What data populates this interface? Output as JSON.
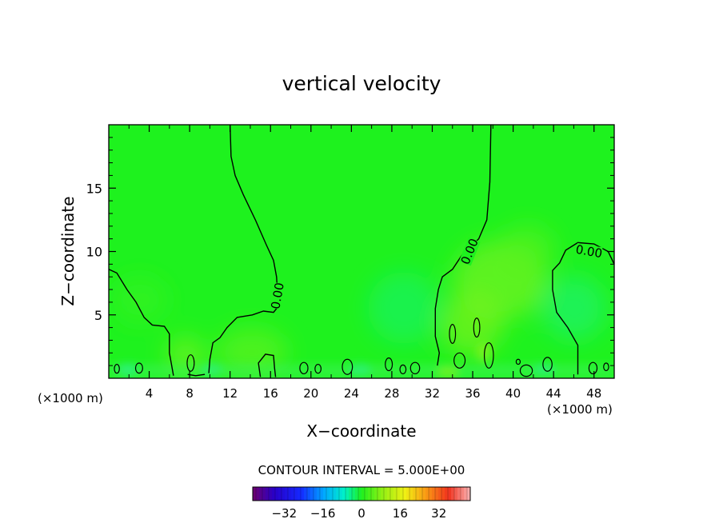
{
  "chart_data": {
    "type": "contour",
    "title": "vertical velocity",
    "xlabel": "X−coordinate",
    "ylabel": "Z−coordinate",
    "x_unit_left": "(×1000 m)",
    "x_unit_right": "(×1000 m)",
    "xlim": [
      0,
      50
    ],
    "ylim": [
      0,
      20
    ],
    "x_ticks": [
      4,
      8,
      12,
      16,
      20,
      24,
      28,
      32,
      36,
      40,
      44,
      48
    ],
    "x_tick_labels": [
      "4",
      "8",
      "12",
      "16",
      "20",
      "24",
      "28",
      "32",
      "36",
      "40",
      "44",
      "48"
    ],
    "y_ticks": [
      5,
      10,
      15
    ],
    "y_tick_labels": [
      "5",
      "10",
      "15"
    ],
    "contour_labels": [
      {
        "text": "0.00",
        "x": 16.7,
        "z": 6.5
      },
      {
        "text": "0.00",
        "x": 35.7,
        "z": 10.0
      },
      {
        "text": "0.00",
        "x": 47.5,
        "z": 10.0
      }
    ],
    "zero_contours": [
      [
        [
          12,
          20
        ],
        [
          12.1,
          17.5
        ],
        [
          12.5,
          16.0
        ],
        [
          13.3,
          14.5
        ],
        [
          14.5,
          12.5
        ],
        [
          15.6,
          10.5
        ],
        [
          16.3,
          9.3
        ],
        [
          16.6,
          8.0
        ],
        [
          16.7,
          6.6
        ],
        [
          16.6,
          5.5
        ],
        [
          16.3,
          5.2
        ],
        [
          15.3,
          5.3
        ],
        [
          14.2,
          5.0
        ],
        [
          12.7,
          4.8
        ],
        [
          11.7,
          4.0
        ],
        [
          11.0,
          3.2
        ],
        [
          10.3,
          2.8
        ],
        [
          10.0,
          1.5
        ],
        [
          9.9,
          0.4
        ]
      ],
      [
        [
          0,
          8.6
        ],
        [
          0.8,
          8.3
        ],
        [
          1.8,
          7.0
        ],
        [
          2.7,
          6.0
        ],
        [
          3.5,
          4.8
        ],
        [
          4.3,
          4.2
        ],
        [
          5.5,
          4.1
        ],
        [
          6.0,
          3.5
        ],
        [
          6.0,
          2.0
        ],
        [
          6.2,
          1.1
        ],
        [
          6.4,
          0.2
        ]
      ],
      [
        [
          37.8,
          20
        ],
        [
          37.7,
          15.5
        ],
        [
          37.4,
          12.5
        ],
        [
          36.6,
          11.0
        ],
        [
          35.0,
          9.8
        ],
        [
          34.0,
          8.6
        ],
        [
          33.0,
          8.0
        ],
        [
          32.6,
          7.0
        ],
        [
          32.3,
          5.5
        ],
        [
          32.3,
          3.3
        ],
        [
          32.7,
          2.0
        ],
        [
          32.5,
          1.0
        ]
      ],
      [
        [
          50,
          9.0
        ],
        [
          49.4,
          10.0
        ],
        [
          48.0,
          10.6
        ],
        [
          46.4,
          10.7
        ],
        [
          45.2,
          10.1
        ],
        [
          44.6,
          9.1
        ],
        [
          43.9,
          8.5
        ],
        [
          43.9,
          7.0
        ],
        [
          44.3,
          5.2
        ],
        [
          45.4,
          4.0
        ],
        [
          46.4,
          2.6
        ],
        [
          46.4,
          0.3
        ]
      ],
      [
        [
          9.5,
          0.3
        ],
        [
          8.6,
          0.2
        ],
        [
          7.8,
          0.3
        ]
      ],
      [
        [
          15,
          0.1
        ],
        [
          14.8,
          1.2
        ],
        [
          15.5,
          1.9
        ],
        [
          16.3,
          1.8
        ],
        [
          16.4,
          0.8
        ],
        [
          16.5,
          0.1
        ]
      ]
    ],
    "small_closed_contours": [
      {
        "x": 8.1,
        "z": 1.2,
        "rx": 0.35,
        "rz": 0.65
      },
      {
        "x": 0.8,
        "z": 0.75,
        "rx": 0.25,
        "rz": 0.35
      },
      {
        "x": 3.0,
        "z": 0.8,
        "rx": 0.35,
        "rz": 0.4
      },
      {
        "x": 19.3,
        "z": 0.8,
        "rx": 0.4,
        "rz": 0.45
      },
      {
        "x": 20.7,
        "z": 0.75,
        "rx": 0.3,
        "rz": 0.35
      },
      {
        "x": 23.6,
        "z": 0.9,
        "rx": 0.5,
        "rz": 0.6
      },
      {
        "x": 27.7,
        "z": 1.1,
        "rx": 0.35,
        "rz": 0.5
      },
      {
        "x": 29.1,
        "z": 0.7,
        "rx": 0.3,
        "rz": 0.35
      },
      {
        "x": 30.3,
        "z": 0.8,
        "rx": 0.45,
        "rz": 0.45
      },
      {
        "x": 34.0,
        "z": 3.5,
        "rx": 0.3,
        "rz": 0.75
      },
      {
        "x": 34.7,
        "z": 1.4,
        "rx": 0.55,
        "rz": 0.6
      },
      {
        "x": 36.4,
        "z": 4.0,
        "rx": 0.3,
        "rz": 0.75
      },
      {
        "x": 37.6,
        "z": 1.8,
        "rx": 0.45,
        "rz": 1.0
      },
      {
        "x": 40.5,
        "z": 1.3,
        "rx": 0.2,
        "rz": 0.2
      },
      {
        "x": 41.3,
        "z": 0.6,
        "rx": 0.6,
        "rz": 0.45
      },
      {
        "x": 43.4,
        "z": 1.1,
        "rx": 0.45,
        "rz": 0.55
      },
      {
        "x": 47.9,
        "z": 0.8,
        "rx": 0.4,
        "rz": 0.45
      },
      {
        "x": 49.2,
        "z": 0.9,
        "rx": 0.25,
        "rz": 0.3
      }
    ],
    "colorbar": {
      "label": "CONTOUR INTERVAL = 5.000E+00",
      "min": -45,
      "max": 45,
      "ticks": [
        -32,
        -16,
        0,
        16,
        32
      ],
      "tick_labels": [
        "−32",
        "−16",
        "0",
        "16",
        "32"
      ]
    },
    "field_color": "#1cf01c",
    "colors": {
      "background": "#ffffff",
      "field_base": "#1ef21e",
      "field_warm": "#64f21e",
      "field_cool": "#1cf27a"
    }
  }
}
